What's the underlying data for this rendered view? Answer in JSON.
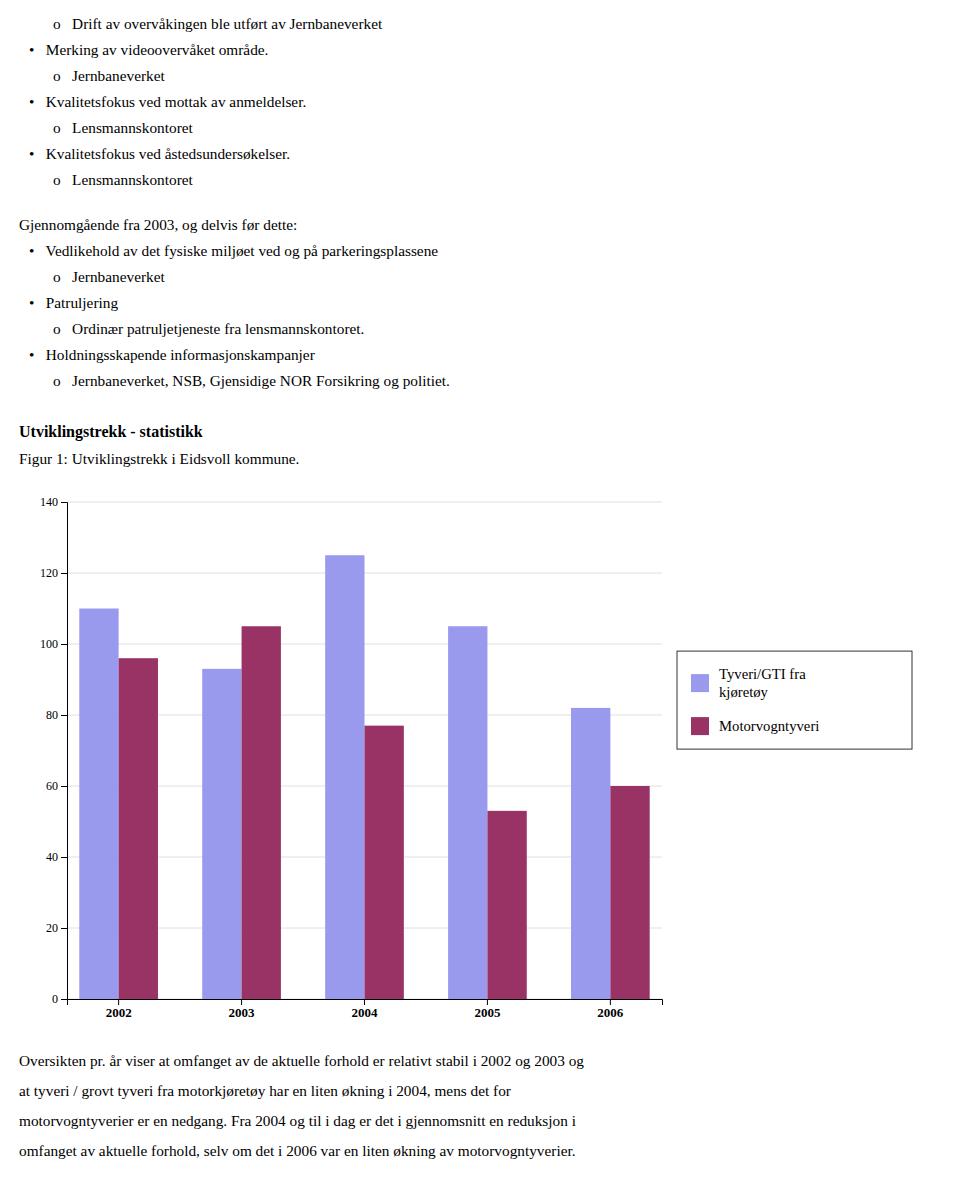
{
  "chart_data": {
    "type": "bar",
    "title": "Utviklingstrekk - statistikk",
    "subtitle": "Figur 1: Utviklingstrekk i Eidsvoll kommune.",
    "annotations": [
      [
        "o   Drift av overvåkingen ble utført av Jernbaneverket",
        "•   Merking av videoovervåket område.",
        "o   Jernbaneverket",
        "•   Kvalitetsfokus ved mottak av anmeldelser.",
        "o   Lensmannskontoret",
        "•   Kvalitetsfokus ved åstedsundersøkelser.",
        "o   Lensmannskontoret",
        "Gjennomgående fra 2003, og delvis før dette:",
        "•   Vedlikehold av det fysiske miljøet ved og på parkeringsplassene",
        "o   Jernbaneverket",
        "•   Patruljering",
        "o   Ordinær patruljetjeneste fra lensmannskontoret.",
        "•   Holdningsskapende informasjonskampanjer",
        "o   Jernbaneverket, NSB, Gjensidige NOR Forsikring og politiet."
      ],
      [
        "Oversikten pr. år viser at omfanget av de aktuelle forhold er relativt stabil i 2002 og 2003 og",
        "at tyveri / grovt tyveri fra motorkjøretøy har en liten økning i 2004, mens det for",
        "motorvogntyverier er en nedgang. Fra 2004 og til i dag er det i gjennomsnitt en reduksjon i",
        "omfanget av aktuelle forhold, selv om det i 2006 var en liten økning av motorvogntyverier."
      ]
    ],
    "categories": [
      "2002",
      "2003",
      "2004",
      "2005",
      "2006"
    ],
    "series": [
      {
        "name": "Tyveri/GTI fra\nkjøretøy",
        "color": "#9999EE",
        "values": [
          110,
          93,
          125,
          105,
          82
        ]
      },
      {
        "name": "Motorvogntyveri",
        "color": "#993366",
        "values": [
          96,
          105,
          77,
          53,
          60
        ]
      }
    ],
    "ylim": [
      0,
      140
    ],
    "yticks": [
      0,
      20,
      40,
      60,
      80,
      100,
      120,
      140
    ],
    "grid": true,
    "legend": "right"
  }
}
